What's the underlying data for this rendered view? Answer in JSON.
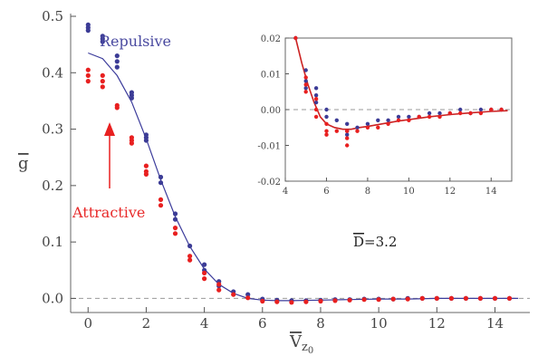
{
  "chart_data": [
    {
      "type": "scatter",
      "title": "",
      "xlabel": "V̄_{z0}",
      "ylabel": "g̅",
      "xlim": [
        -0.6,
        15.2
      ],
      "ylim": [
        -0.025,
        0.5
      ],
      "x_ticks": [
        0,
        2,
        4,
        6,
        8,
        10,
        12,
        14
      ],
      "x_tick_labels": [
        "0",
        "2",
        "4",
        "6",
        "8",
        "10",
        "12",
        "14"
      ],
      "y_ticks": [
        0.0,
        0.1,
        0.2,
        0.3,
        0.4,
        0.5
      ],
      "y_tick_labels": [
        "0.0",
        "0.1",
        "0.2",
        "0.3",
        "0.4",
        "0.5"
      ],
      "series": [
        {
          "name": "Repulsive",
          "color": "#3c3c96",
          "x": [
            0.0,
            0.0,
            0.0,
            0.5,
            0.5,
            0.5,
            1.0,
            1.0,
            1.0,
            1.5,
            1.5,
            1.5,
            2.0,
            2.0,
            2.0,
            2.5,
            2.5,
            3.0,
            3.0,
            3.5,
            4.0,
            4.0,
            4.5,
            4.5,
            5.0,
            5.5,
            6.0,
            6.5,
            7.0,
            7.5,
            8.0,
            8.5,
            9.0,
            9.5,
            10.0,
            10.5,
            11.0,
            11.5,
            12.0,
            12.5,
            13.0,
            13.5,
            14.0,
            14.5
          ],
          "y": [
            0.485,
            0.48,
            0.475,
            0.465,
            0.46,
            0.455,
            0.43,
            0.42,
            0.41,
            0.365,
            0.36,
            0.355,
            0.29,
            0.285,
            0.28,
            0.215,
            0.205,
            0.15,
            0.14,
            0.093,
            0.06,
            0.05,
            0.03,
            0.022,
            0.012,
            0.007,
            -0.001,
            -0.003,
            -0.004,
            -0.004,
            -0.003,
            -0.002,
            -0.002,
            -0.001,
            -0.001,
            -0.001,
            0.0,
            0.0,
            0.0,
            0.0,
            0.0,
            0.0,
            0.0,
            0.0
          ]
        },
        {
          "name": "Attractive",
          "color": "#e82020",
          "x": [
            0.0,
            0.0,
            0.0,
            0.5,
            0.5,
            0.5,
            1.0,
            1.0,
            1.5,
            1.5,
            1.5,
            2.0,
            2.0,
            2.0,
            2.5,
            2.5,
            3.0,
            3.0,
            3.5,
            3.5,
            4.0,
            4.0,
            4.5,
            4.5,
            5.0,
            5.5,
            6.0,
            6.5,
            7.0,
            7.5,
            8.0,
            8.5,
            9.0,
            9.5,
            10.0,
            10.5,
            11.0,
            11.5,
            12.0,
            12.5,
            13.0,
            13.5,
            14.0,
            14.5
          ],
          "y": [
            0.405,
            0.395,
            0.385,
            0.395,
            0.385,
            0.375,
            0.342,
            0.338,
            0.285,
            0.28,
            0.275,
            0.235,
            0.225,
            0.22,
            0.175,
            0.165,
            0.125,
            0.115,
            0.075,
            0.068,
            0.045,
            0.035,
            0.025,
            0.015,
            0.007,
            0.001,
            -0.005,
            -0.006,
            -0.007,
            -0.006,
            -0.005,
            -0.004,
            -0.003,
            -0.002,
            -0.002,
            -0.001,
            -0.001,
            0.0,
            0.0,
            0.0,
            0.0,
            0.0,
            0.0,
            0.0
          ]
        },
        {
          "name": "",
          "type": "line",
          "color": "#3b3b9b",
          "x": [
            0.0,
            0.5,
            1.0,
            1.5,
            2.0,
            2.5,
            3.0,
            3.5,
            4.0,
            4.5,
            5.0,
            5.5,
            6.0,
            6.5,
            7.0,
            8.0,
            9.0,
            10.0,
            11.0,
            12.0,
            13.0,
            14.0,
            14.8
          ],
          "y": [
            0.435,
            0.425,
            0.395,
            0.348,
            0.283,
            0.21,
            0.145,
            0.092,
            0.052,
            0.025,
            0.009,
            0.0,
            -0.003,
            -0.004,
            -0.004,
            -0.003,
            -0.002,
            -0.001,
            -0.001,
            0.0,
            0.0,
            0.0,
            0.0
          ]
        }
      ],
      "annotations": [
        {
          "text": "Repulsive",
          "x": 0.7,
          "y": 0.455
        },
        {
          "text": "Attractive",
          "x": 0.9,
          "y": 0.148,
          "arrow_to": [
            1.0,
            0.33
          ]
        },
        {
          "text": "D̅=3.2",
          "x": 11.0,
          "y": 0.09
        }
      ]
    },
    {
      "type": "scatter",
      "title": "",
      "xlabel": "",
      "ylabel": "",
      "xlim": [
        4.0,
        15.0
      ],
      "ylim": [
        -0.02,
        0.02
      ],
      "x_ticks": [
        4,
        6,
        8,
        10,
        12,
        14
      ],
      "x_tick_labels": [
        "4",
        "6",
        "8",
        "10",
        "12",
        "14"
      ],
      "y_ticks": [
        -0.02,
        -0.01,
        0.0,
        0.01,
        0.02
      ],
      "y_tick_labels": [
        "-0.02",
        "-0.01",
        "0.00",
        "0.01",
        "0.02"
      ],
      "series": [
        {
          "name": "Repulsive",
          "color": "#3c3c96",
          "x": [
            4.5,
            5.0,
            5.0,
            5.0,
            5.5,
            5.5,
            5.5,
            6.0,
            6.0,
            6.5,
            7.0,
            7.0,
            7.0,
            7.5,
            8.0,
            8.5,
            9.0,
            9.5,
            10.0,
            10.5,
            11.0,
            11.5,
            12.0,
            12.5,
            13.0,
            13.5,
            14.0,
            14.5
          ],
          "y": [
            0.02,
            0.011,
            0.008,
            0.006,
            0.006,
            0.004,
            0.002,
            0.0,
            -0.002,
            -0.003,
            -0.004,
            -0.006,
            -0.007,
            -0.005,
            -0.004,
            -0.003,
            -0.003,
            -0.002,
            -0.002,
            -0.002,
            -0.001,
            -0.001,
            -0.001,
            0.0,
            -0.001,
            0.0,
            0.0,
            0.0
          ]
        },
        {
          "name": "Attractive",
          "color": "#e82020",
          "x": [
            4.5,
            5.0,
            5.0,
            5.0,
            5.5,
            5.5,
            5.5,
            6.0,
            6.0,
            6.0,
            6.5,
            7.0,
            7.0,
            7.0,
            7.5,
            8.0,
            8.5,
            9.0,
            9.5,
            10.0,
            10.5,
            11.0,
            11.5,
            12.0,
            12.5,
            13.0,
            13.5,
            14.0,
            14.5
          ],
          "y": [
            0.02,
            0.009,
            0.007,
            0.005,
            0.003,
            0.0,
            -0.002,
            -0.004,
            -0.006,
            -0.007,
            -0.006,
            -0.006,
            -0.008,
            -0.01,
            -0.006,
            -0.005,
            -0.005,
            -0.004,
            -0.003,
            -0.003,
            -0.002,
            -0.002,
            -0.002,
            -0.001,
            -0.001,
            -0.001,
            -0.001,
            0.0,
            0.0
          ]
        },
        {
          "name": "",
          "type": "line",
          "color": "#cc2222",
          "x": [
            4.5,
            4.8,
            5.1,
            5.4,
            5.7,
            6.0,
            6.4,
            6.8,
            7.2,
            7.6,
            8.0,
            8.5,
            9.0,
            9.5,
            10.0,
            11.0,
            12.0,
            13.0,
            14.0,
            14.8
          ],
          "y": [
            0.02,
            0.013,
            0.007,
            0.002,
            -0.002,
            -0.004,
            -0.005,
            -0.0055,
            -0.0055,
            -0.005,
            -0.0047,
            -0.0042,
            -0.0037,
            -0.0032,
            -0.0028,
            -0.002,
            -0.0014,
            -0.0009,
            -0.0005,
            -0.0003
          ]
        }
      ]
    }
  ]
}
